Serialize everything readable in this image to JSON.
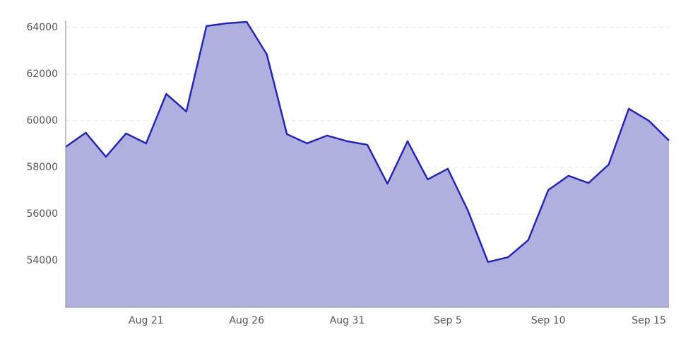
{
  "chart_data": {
    "type": "area",
    "categories": [
      null,
      null,
      null,
      null,
      "Aug 21",
      null,
      null,
      null,
      null,
      "Aug 26",
      null,
      null,
      null,
      null,
      "Aug 31",
      null,
      null,
      null,
      null,
      "Sep 5",
      null,
      null,
      null,
      null,
      "Sep 10",
      null,
      null,
      null,
      null,
      "Sep 15",
      null
    ],
    "series": [
      {
        "color": "#2626b0",
        "values": [
          58880,
          59485,
          58455,
          59455,
          59030,
          61150,
          60395,
          64060,
          64180,
          64240,
          62850,
          59425,
          59030,
          59365,
          59120,
          58970,
          57300,
          59120,
          57485,
          57940,
          56150,
          53940,
          54150,
          54880,
          57030,
          57640,
          57330,
          58120,
          60515,
          60000,
          59150
        ]
      }
    ],
    "fill": "#b0b0e0",
    "ylim": [
      52000,
      64300
    ],
    "yticks": [
      54000,
      56000,
      58000,
      60000,
      62000,
      64000
    ],
    "grid": true
  }
}
